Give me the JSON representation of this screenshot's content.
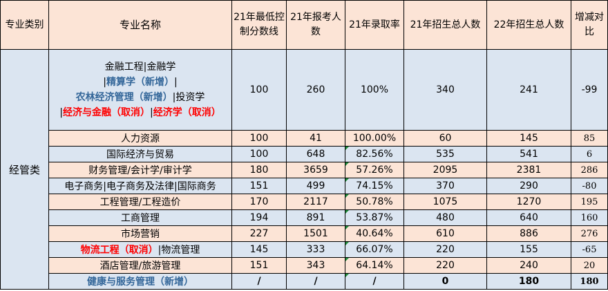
{
  "headers": [
    "专业类别",
    "专业名称",
    "21年最低控制分数线",
    "21年报考人数",
    "21年录取率",
    "21年招生总人数",
    "22年招生总人数",
    "增减对比"
  ],
  "category": "经管类",
  "first_row": {
    "name_parts": {
      "line1": "金融工程|金融学",
      "line2a": "|",
      "line2b": "精算学（新增）",
      "line2c": "|",
      "line3a": "农林经济管理（新增）",
      "line3b": "|投资学",
      "line4a": "|",
      "line4b": "经济与金融（取消）",
      "line4c": "|",
      "line4d": "经济学（取消）"
    },
    "min_score": "100",
    "applicants": "260",
    "rate": "100%",
    "enroll21": "340",
    "enroll22": "241",
    "diff": "-99"
  },
  "rows": [
    {
      "name": "人力资源",
      "min_score": "100",
      "applicants": "41",
      "rate": "100.00%",
      "enroll21": "60",
      "enroll22": "145",
      "diff": "85"
    },
    {
      "name": "国际经济与贸易",
      "min_score": "100",
      "applicants": "648",
      "rate": "82.56%",
      "enroll21": "535",
      "enroll22": "541",
      "diff": "6"
    },
    {
      "name": "财务管理/会计学/审计学",
      "min_score": "180",
      "applicants": "3659",
      "rate": "57.26%",
      "enroll21": "2095",
      "enroll22": "2381",
      "diff": "286"
    },
    {
      "name": "电子商务|电子商务及法律|国际商务",
      "min_score": "151",
      "applicants": "499",
      "rate": "74.15%",
      "enroll21": "370",
      "enroll22": "290",
      "diff": "-80"
    },
    {
      "name": "工程管理/工程造价",
      "min_score": "170",
      "applicants": "2117",
      "rate": "50.78%",
      "enroll21": "1075",
      "enroll22": "1270",
      "diff": "195"
    },
    {
      "name": "工商管理",
      "min_score": "194",
      "applicants": "891",
      "rate": "53.87%",
      "enroll21": "480",
      "enroll22": "640",
      "diff": "160"
    },
    {
      "name": "市场营销",
      "min_score": "227",
      "applicants": "1501",
      "rate": "40.64%",
      "enroll21": "610",
      "enroll22": "886",
      "diff": "276"
    },
    {
      "name_red": "物流工程（取消）",
      "name_rest": "|物流管理",
      "min_score": "145",
      "applicants": "333",
      "rate": "66.07%",
      "enroll21": "220",
      "enroll22": "155",
      "diff": "-65"
    },
    {
      "name": "酒店管理/旅游管理",
      "min_score": "151",
      "applicants": "343",
      "rate": "64.14%",
      "enroll21": "220",
      "enroll22": "240",
      "diff": "20"
    },
    {
      "name": "健康与服务管理（新增）",
      "min_score": "/",
      "applicants": "/",
      "rate": "/",
      "enroll21": "0",
      "enroll22": "180",
      "diff": "180"
    }
  ]
}
